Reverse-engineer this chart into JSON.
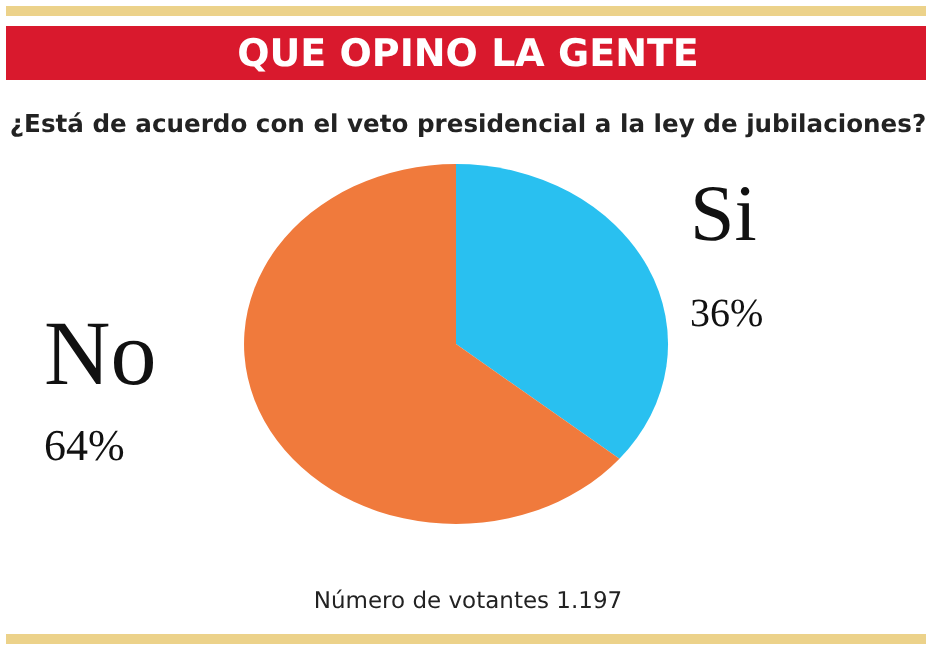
{
  "chart_data": {
    "type": "pie",
    "title": "QUE OPINO LA GENTE",
    "subtitle": "¿Está de acuerdo con el veto presidencial a la ley de jubilaciones?",
    "categories": [
      "Si",
      "No"
    ],
    "values": [
      36,
      64
    ],
    "colors": [
      "#29c0f0",
      "#f07a3c"
    ],
    "value_labels": [
      "36%",
      "64%"
    ],
    "annotations": [
      "Número de votantes 1.197"
    ]
  }
}
